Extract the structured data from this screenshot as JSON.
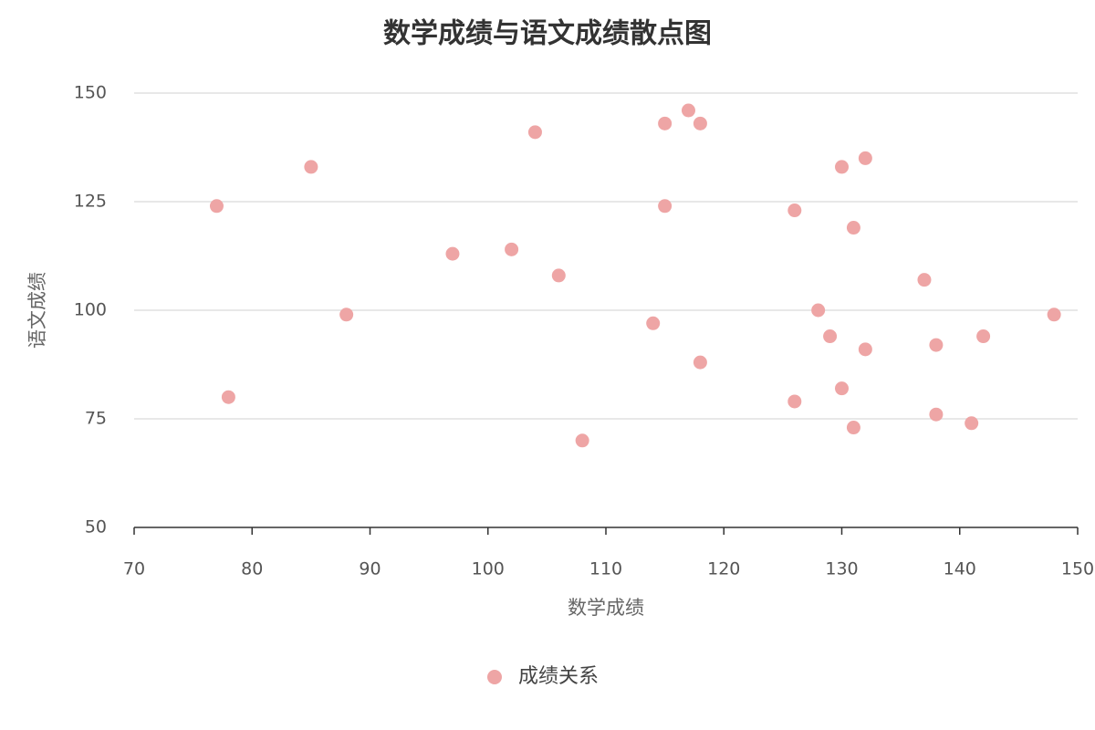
{
  "chart_data": {
    "type": "scatter",
    "title": "数学成绩与语文成绩散点图",
    "x_label": "数学成绩",
    "y_label": "语文成绩",
    "series": [
      {
        "name": "成绩关系",
        "color": "#eea5a5",
        "x": [
          77,
          78,
          85,
          88,
          97,
          102,
          104,
          106,
          108,
          114,
          115,
          115,
          117,
          118,
          118,
          126,
          126,
          128,
          129,
          130,
          130,
          131,
          131,
          132,
          132,
          137,
          138,
          138,
          141,
          142,
          148
        ],
        "values": [
          124,
          80,
          133,
          99,
          113,
          114,
          141,
          108,
          70,
          97,
          143,
          124,
          146,
          143,
          88,
          123,
          79,
          100,
          94,
          133,
          82,
          119,
          73,
          135,
          91,
          107,
          92,
          76,
          74,
          94,
          99
        ]
      }
    ],
    "xlim": [
      70,
      150
    ],
    "xticks": [
      70,
      80,
      90,
      100,
      110,
      120,
      130,
      140,
      150
    ],
    "ylim": [
      50,
      150
    ],
    "yticks": [
      50,
      75,
      100,
      125,
      150
    ],
    "grid": true,
    "legend": "bottom"
  }
}
